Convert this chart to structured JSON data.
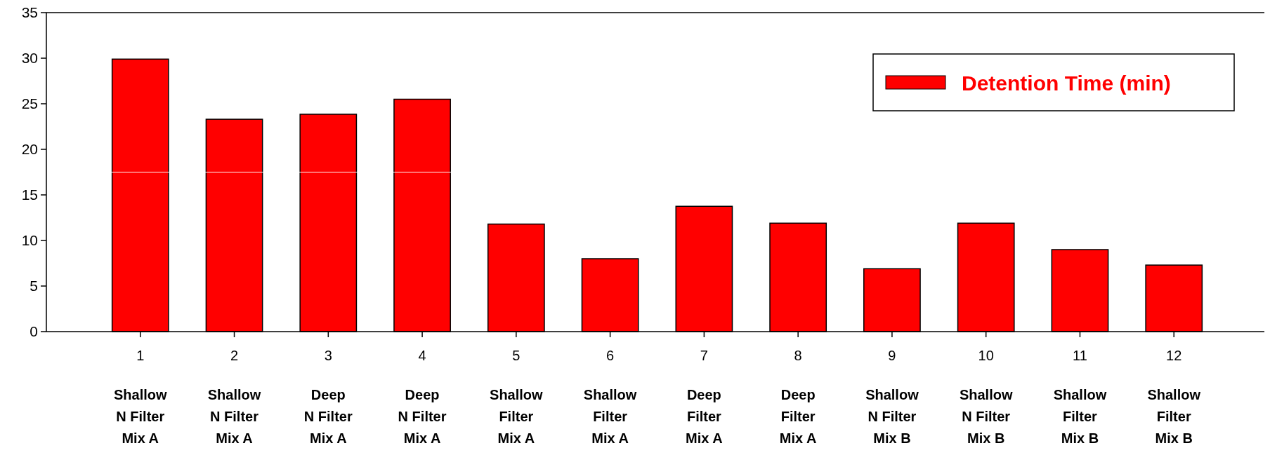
{
  "chart_data": {
    "type": "bar",
    "categories": [
      "1\nShallow\nN Filter\nMix A",
      "2\nShallow\nN Filter\nMix A",
      "3\nDeep\nN Filter\nMix A",
      "4\nDeep\nN Filter\nMix A",
      "5\nShallow\nFilter\nMix A",
      "6\nShallow\nFilter\nMix A",
      "7\nDeep\nFilter\nMix A",
      "8\nDeep\nFilter\nMix A",
      "9\nShallow\nN Filter\nMix B",
      "10\nShallow\nN Filter\nMix B",
      "11\nShallow\nFilter\nMix B",
      "12\nShallow\nFilter\nMix B"
    ],
    "series": [
      {
        "name": "Detention Time (min)",
        "color": "#ff0000",
        "values": [
          29.9,
          23.3,
          23.85,
          25.5,
          11.8,
          8.0,
          13.75,
          11.9,
          6.9,
          11.9,
          9.0,
          7.3
        ]
      }
    ],
    "ylim": [
      0,
      35
    ],
    "yticks": [
      0,
      5,
      10,
      15,
      20,
      25,
      30,
      35
    ],
    "ref_lines": [
      {
        "axis": "y",
        "value": 17.5,
        "color": "#ffffff"
      }
    ],
    "grid": false,
    "legend": "top right"
  }
}
